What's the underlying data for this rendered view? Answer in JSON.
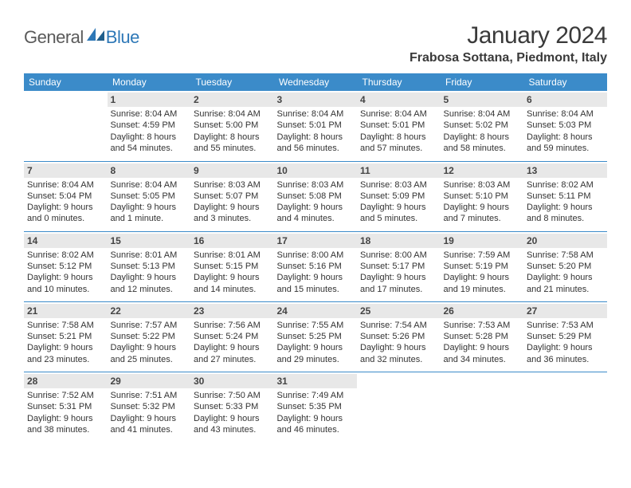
{
  "logo": {
    "general": "General",
    "blue": "Blue"
  },
  "title": "January 2024",
  "location": "Frabosa Sottana, Piedmont, Italy",
  "colors": {
    "header_bg": "#3b8bc9",
    "header_text": "#ffffff",
    "daynum_bg": "#e8e8e8",
    "border": "#3b8bc9",
    "text": "#333333",
    "logo_gray": "#5a5a5a",
    "logo_blue": "#2e78b7"
  },
  "day_headers": [
    "Sunday",
    "Monday",
    "Tuesday",
    "Wednesday",
    "Thursday",
    "Friday",
    "Saturday"
  ],
  "weeks": [
    [
      {
        "n": "",
        "sr": "",
        "ss": "",
        "dl": ""
      },
      {
        "n": "1",
        "sr": "Sunrise: 8:04 AM",
        "ss": "Sunset: 4:59 PM",
        "dl": "Daylight: 8 hours and 54 minutes."
      },
      {
        "n": "2",
        "sr": "Sunrise: 8:04 AM",
        "ss": "Sunset: 5:00 PM",
        "dl": "Daylight: 8 hours and 55 minutes."
      },
      {
        "n": "3",
        "sr": "Sunrise: 8:04 AM",
        "ss": "Sunset: 5:01 PM",
        "dl": "Daylight: 8 hours and 56 minutes."
      },
      {
        "n": "4",
        "sr": "Sunrise: 8:04 AM",
        "ss": "Sunset: 5:01 PM",
        "dl": "Daylight: 8 hours and 57 minutes."
      },
      {
        "n": "5",
        "sr": "Sunrise: 8:04 AM",
        "ss": "Sunset: 5:02 PM",
        "dl": "Daylight: 8 hours and 58 minutes."
      },
      {
        "n": "6",
        "sr": "Sunrise: 8:04 AM",
        "ss": "Sunset: 5:03 PM",
        "dl": "Daylight: 8 hours and 59 minutes."
      }
    ],
    [
      {
        "n": "7",
        "sr": "Sunrise: 8:04 AM",
        "ss": "Sunset: 5:04 PM",
        "dl": "Daylight: 9 hours and 0 minutes."
      },
      {
        "n": "8",
        "sr": "Sunrise: 8:04 AM",
        "ss": "Sunset: 5:05 PM",
        "dl": "Daylight: 9 hours and 1 minute."
      },
      {
        "n": "9",
        "sr": "Sunrise: 8:03 AM",
        "ss": "Sunset: 5:07 PM",
        "dl": "Daylight: 9 hours and 3 minutes."
      },
      {
        "n": "10",
        "sr": "Sunrise: 8:03 AM",
        "ss": "Sunset: 5:08 PM",
        "dl": "Daylight: 9 hours and 4 minutes."
      },
      {
        "n": "11",
        "sr": "Sunrise: 8:03 AM",
        "ss": "Sunset: 5:09 PM",
        "dl": "Daylight: 9 hours and 5 minutes."
      },
      {
        "n": "12",
        "sr": "Sunrise: 8:03 AM",
        "ss": "Sunset: 5:10 PM",
        "dl": "Daylight: 9 hours and 7 minutes."
      },
      {
        "n": "13",
        "sr": "Sunrise: 8:02 AM",
        "ss": "Sunset: 5:11 PM",
        "dl": "Daylight: 9 hours and 8 minutes."
      }
    ],
    [
      {
        "n": "14",
        "sr": "Sunrise: 8:02 AM",
        "ss": "Sunset: 5:12 PM",
        "dl": "Daylight: 9 hours and 10 minutes."
      },
      {
        "n": "15",
        "sr": "Sunrise: 8:01 AM",
        "ss": "Sunset: 5:13 PM",
        "dl": "Daylight: 9 hours and 12 minutes."
      },
      {
        "n": "16",
        "sr": "Sunrise: 8:01 AM",
        "ss": "Sunset: 5:15 PM",
        "dl": "Daylight: 9 hours and 14 minutes."
      },
      {
        "n": "17",
        "sr": "Sunrise: 8:00 AM",
        "ss": "Sunset: 5:16 PM",
        "dl": "Daylight: 9 hours and 15 minutes."
      },
      {
        "n": "18",
        "sr": "Sunrise: 8:00 AM",
        "ss": "Sunset: 5:17 PM",
        "dl": "Daylight: 9 hours and 17 minutes."
      },
      {
        "n": "19",
        "sr": "Sunrise: 7:59 AM",
        "ss": "Sunset: 5:19 PM",
        "dl": "Daylight: 9 hours and 19 minutes."
      },
      {
        "n": "20",
        "sr": "Sunrise: 7:58 AM",
        "ss": "Sunset: 5:20 PM",
        "dl": "Daylight: 9 hours and 21 minutes."
      }
    ],
    [
      {
        "n": "21",
        "sr": "Sunrise: 7:58 AM",
        "ss": "Sunset: 5:21 PM",
        "dl": "Daylight: 9 hours and 23 minutes."
      },
      {
        "n": "22",
        "sr": "Sunrise: 7:57 AM",
        "ss": "Sunset: 5:22 PM",
        "dl": "Daylight: 9 hours and 25 minutes."
      },
      {
        "n": "23",
        "sr": "Sunrise: 7:56 AM",
        "ss": "Sunset: 5:24 PM",
        "dl": "Daylight: 9 hours and 27 minutes."
      },
      {
        "n": "24",
        "sr": "Sunrise: 7:55 AM",
        "ss": "Sunset: 5:25 PM",
        "dl": "Daylight: 9 hours and 29 minutes."
      },
      {
        "n": "25",
        "sr": "Sunrise: 7:54 AM",
        "ss": "Sunset: 5:26 PM",
        "dl": "Daylight: 9 hours and 32 minutes."
      },
      {
        "n": "26",
        "sr": "Sunrise: 7:53 AM",
        "ss": "Sunset: 5:28 PM",
        "dl": "Daylight: 9 hours and 34 minutes."
      },
      {
        "n": "27",
        "sr": "Sunrise: 7:53 AM",
        "ss": "Sunset: 5:29 PM",
        "dl": "Daylight: 9 hours and 36 minutes."
      }
    ],
    [
      {
        "n": "28",
        "sr": "Sunrise: 7:52 AM",
        "ss": "Sunset: 5:31 PM",
        "dl": "Daylight: 9 hours and 38 minutes."
      },
      {
        "n": "29",
        "sr": "Sunrise: 7:51 AM",
        "ss": "Sunset: 5:32 PM",
        "dl": "Daylight: 9 hours and 41 minutes."
      },
      {
        "n": "30",
        "sr": "Sunrise: 7:50 AM",
        "ss": "Sunset: 5:33 PM",
        "dl": "Daylight: 9 hours and 43 minutes."
      },
      {
        "n": "31",
        "sr": "Sunrise: 7:49 AM",
        "ss": "Sunset: 5:35 PM",
        "dl": "Daylight: 9 hours and 46 minutes."
      },
      {
        "n": "",
        "sr": "",
        "ss": "",
        "dl": ""
      },
      {
        "n": "",
        "sr": "",
        "ss": "",
        "dl": ""
      },
      {
        "n": "",
        "sr": "",
        "ss": "",
        "dl": ""
      }
    ]
  ]
}
